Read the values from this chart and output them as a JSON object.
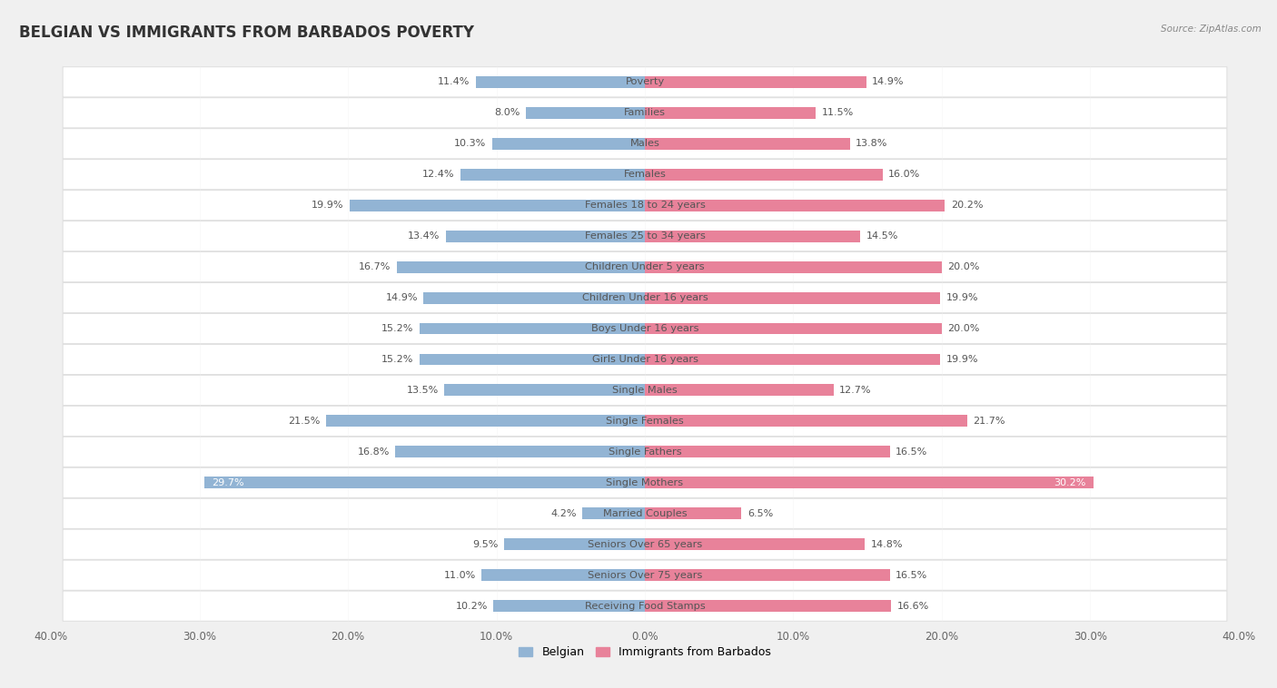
{
  "title": "BELGIAN VS IMMIGRANTS FROM BARBADOS POVERTY",
  "source": "Source: ZipAtlas.com",
  "categories": [
    "Poverty",
    "Families",
    "Males",
    "Females",
    "Females 18 to 24 years",
    "Females 25 to 34 years",
    "Children Under 5 years",
    "Children Under 16 years",
    "Boys Under 16 years",
    "Girls Under 16 years",
    "Single Males",
    "Single Females",
    "Single Fathers",
    "Single Mothers",
    "Married Couples",
    "Seniors Over 65 years",
    "Seniors Over 75 years",
    "Receiving Food Stamps"
  ],
  "belgian": [
    11.4,
    8.0,
    10.3,
    12.4,
    19.9,
    13.4,
    16.7,
    14.9,
    15.2,
    15.2,
    13.5,
    21.5,
    16.8,
    29.7,
    4.2,
    9.5,
    11.0,
    10.2
  ],
  "barbados": [
    14.9,
    11.5,
    13.8,
    16.0,
    20.2,
    14.5,
    20.0,
    19.9,
    20.0,
    19.9,
    12.7,
    21.7,
    16.5,
    30.2,
    6.5,
    14.8,
    16.5,
    16.6
  ],
  "belgian_color": "#92b4d4",
  "barbados_color": "#e8829a",
  "belgian_label": "Belgian",
  "barbados_label": "Immigrants from Barbados",
  "axis_max": 40.0,
  "background_color": "#f0f0f0",
  "row_color": "#ffffff",
  "sep_color": "#e0e0e0",
  "title_fontsize": 12,
  "label_fontsize": 8.2,
  "value_fontsize": 8.0,
  "bar_height": 0.38
}
